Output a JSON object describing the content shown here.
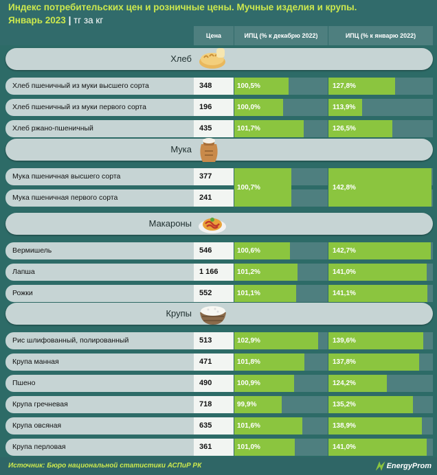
{
  "header": {
    "title_line1": "Индекс потребительских цен и розничные цены. Мучные изделия и крупы.",
    "title_line2": "Январь 2023",
    "unit": "тг за кг"
  },
  "columns": {
    "price": "Цена",
    "cpi_dec": "ИПЦ (% к декабрю 2022)",
    "cpi_jan": "ИПЦ (% к январю 2022)"
  },
  "chart_data": {
    "type": "bar",
    "sections": [
      {
        "name": "Хлеб",
        "icon": "bread-icon",
        "items": [
          {
            "label": "Хлеб пшеничный из муки высшего сорта",
            "price": "348",
            "cpi_dec": 100.5,
            "cpi_dec_label": "100,5%",
            "cpi_jan": 127.8,
            "cpi_jan_label": "127,8%"
          },
          {
            "label": "Хлеб пшеничный из муки первого сорта",
            "price": "196",
            "cpi_dec": 100.0,
            "cpi_dec_label": "100,0%",
            "cpi_jan": 113.9,
            "cpi_jan_label": "113,9%"
          },
          {
            "label": "Хлеб ржано-пшеничный",
            "price": "435",
            "cpi_dec": 101.7,
            "cpi_dec_label": "101,7%",
            "cpi_jan": 126.5,
            "cpi_jan_label": "126,5%"
          }
        ]
      },
      {
        "name": "Мука",
        "icon": "flour-sack-icon",
        "items": [
          {
            "label": "Мука пшеничная высшего сорта",
            "price": "377"
          },
          {
            "label": "Мука пшеничная первого сорта",
            "price": "241"
          }
        ],
        "merged": {
          "cpi_dec": 100.7,
          "cpi_dec_label": "100,7%",
          "cpi_jan": 142.8,
          "cpi_jan_label": "142,8%"
        }
      },
      {
        "name": "Макароны",
        "icon": "pasta-plate-icon",
        "items": [
          {
            "label": "Вермишель",
            "price": "546",
            "cpi_dec": 100.6,
            "cpi_dec_label": "100,6%",
            "cpi_jan": 142.7,
            "cpi_jan_label": "142,7%"
          },
          {
            "label": "Лапша",
            "price": "1 166",
            "cpi_dec": 101.2,
            "cpi_dec_label": "101,2%",
            "cpi_jan": 141.0,
            "cpi_jan_label": "141,0%"
          },
          {
            "label": "Рожки",
            "price": "552",
            "cpi_dec": 101.1,
            "cpi_dec_label": "101,1%",
            "cpi_jan": 141.1,
            "cpi_jan_label": "141,1%"
          }
        ]
      },
      {
        "name": "Крупы",
        "icon": "rice-bowl-icon",
        "items": [
          {
            "label": "Рис шлифованный, полированный",
            "price": "513",
            "cpi_dec": 102.9,
            "cpi_dec_label": "102,9%",
            "cpi_jan": 139.6,
            "cpi_jan_label": "139,6%"
          },
          {
            "label": "Крупа манная",
            "price": "471",
            "cpi_dec": 101.8,
            "cpi_dec_label": "101,8%",
            "cpi_jan": 137.8,
            "cpi_jan_label": "137,8%"
          },
          {
            "label": "Пшено",
            "price": "490",
            "cpi_dec": 100.9,
            "cpi_dec_label": "100,9%",
            "cpi_jan": 124.2,
            "cpi_jan_label": "124,2%"
          },
          {
            "label": "Крупа гречневая",
            "price": "718",
            "cpi_dec": 99.9,
            "cpi_dec_label": "99,9%",
            "cpi_jan": 135.2,
            "cpi_jan_label": "135,2%"
          },
          {
            "label": "Крупа овсяная",
            "price": "635",
            "cpi_dec": 101.6,
            "cpi_dec_label": "101,6%",
            "cpi_jan": 138.9,
            "cpi_jan_label": "138,9%"
          },
          {
            "label": "Крупа перловая",
            "price": "361",
            "cpi_dec": 101.0,
            "cpi_dec_label": "101,0%",
            "cpi_jan": 141.0,
            "cpi_jan_label": "141,0%"
          }
        ]
      }
    ]
  },
  "footer": {
    "source": "Источник: Бюро национальной статистики АСПиР РК",
    "brand": "EnergyProm"
  },
  "colors": {
    "bar": "#8bc53f",
    "accent": "#cce84e",
    "background": "#316b6b"
  }
}
